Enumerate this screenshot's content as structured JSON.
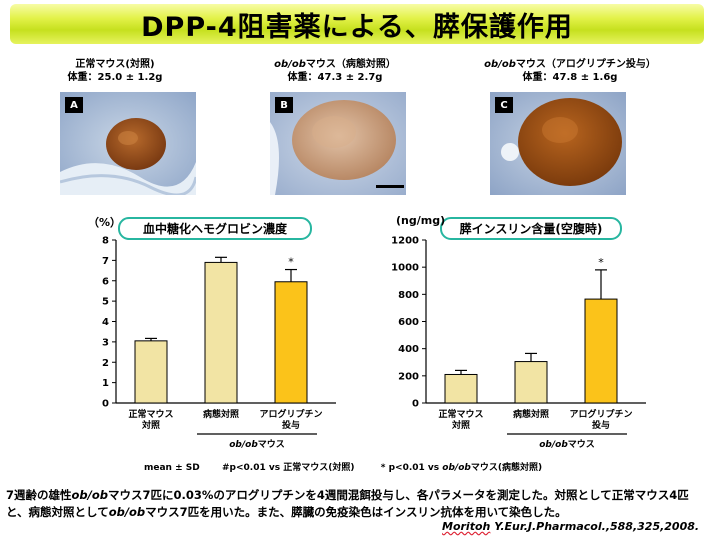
{
  "title": "DPP-4阻害薬による、膵保護作用",
  "panels": [
    {
      "heading": "正常マウス(対照)",
      "weight": "体重：25.0 ± 1.2g",
      "letter": "A"
    },
    {
      "heading_italic": "ob/ob",
      "heading_rest": "マウス（病態対照）",
      "weight": "体重：47.3 ± 2.7g",
      "letter": "B"
    },
    {
      "heading_italic": "ob/ob",
      "heading_rest": "マウス（アログリプチン投与）",
      "weight": "体重：47.8 ± 1.6g",
      "letter": "C"
    }
  ],
  "legend": {
    "mean": "mean ± SD",
    "hash": "#p<0.01  vs  正常マウス(対照)",
    "star_pre": "* p<0.01  vs ",
    "star_italic": "ob/ob",
    "star_post": "マウス(病態対照)"
  },
  "description": "7週齢の雄性ob/obマウス7匹に0.03%のアログリプチンを4週間混餌投与し、各パラメータを測定した。対照として正常マウス4匹と、病態対照としてob/obマウス7匹を用いた。また、膵臓の免疫染色はインスリン抗体を用いて染色した。",
  "citation": {
    "author": "Moritoh",
    "rest": " Y.Eur.J.Pharmacol.,588,325,2008."
  },
  "chart_data": [
    {
      "type": "bar",
      "title": "血中糖化ヘモグロビン濃度",
      "unit": "（%）",
      "categories": [
        "正常マウス\n対照",
        "病態対照",
        "アログリプチン\n投与"
      ],
      "values": [
        3.05,
        6.9,
        5.95
      ],
      "errors": [
        0.12,
        0.25,
        0.6
      ],
      "ylim": [
        0,
        8
      ],
      "yticks": [
        0,
        1,
        2,
        3,
        4,
        5,
        6,
        7,
        8
      ],
      "annotations": [
        "",
        "",
        "*"
      ],
      "group_label_italic": "ob/ob",
      "group_label_rest": "マウス",
      "colors": [
        "#f2e4a4",
        "#f2e4a4",
        "#fbc31a"
      ]
    },
    {
      "type": "bar",
      "title": "膵インスリン含量(空腹時)",
      "unit": "(ng/mg)",
      "categories": [
        "正常マウス\n対照",
        "病態対照",
        "アログリプチン\n投与"
      ],
      "values": [
        210,
        305,
        765
      ],
      "errors": [
        30,
        60,
        215
      ],
      "ylim": [
        0,
        1200
      ],
      "yticks": [
        0,
        200,
        400,
        600,
        800,
        1000,
        1200
      ],
      "annotations": [
        "",
        "",
        "*"
      ],
      "group_label_italic": "ob/ob",
      "group_label_rest": "マウス",
      "colors": [
        "#f2e4a4",
        "#f2e4a4",
        "#fbc31a"
      ]
    }
  ]
}
